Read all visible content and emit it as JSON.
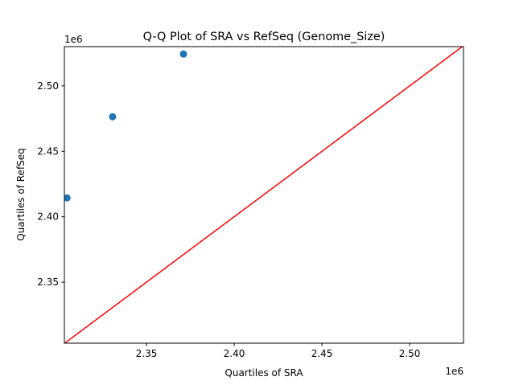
{
  "chart_data": {
    "type": "scatter",
    "title": "Q-Q Plot of SRA vs RefSeq (Genome_Size)",
    "xlabel": "Quartiles of SRA",
    "ylabel": "Quartiles of RefSeq",
    "x_offset_label": "1e6",
    "y_offset_label": "1e6",
    "xlim": [
      2.3032,
      2.5307
    ],
    "ylim": [
      2.3034,
      2.53
    ],
    "xticks": [
      2.35,
      2.4,
      2.45,
      2.5
    ],
    "xtick_labels": [
      "2.35",
      "2.40",
      "2.45",
      "2.50"
    ],
    "yticks": [
      2.35,
      2.4,
      2.45,
      2.5
    ],
    "ytick_labels": [
      "2.35",
      "2.40",
      "2.45",
      "2.50"
    ],
    "grid": false,
    "series": [
      {
        "type": "scatter",
        "color": "#1f77b4",
        "x": [
          2.3047,
          2.3307,
          2.3711
        ],
        "y": [
          2.4144,
          2.4764,
          2.5243
        ]
      },
      {
        "type": "line",
        "color": "#ff0000",
        "x": [
          2.3032,
          2.5307
        ],
        "y": [
          2.3032,
          2.5307
        ]
      }
    ]
  }
}
